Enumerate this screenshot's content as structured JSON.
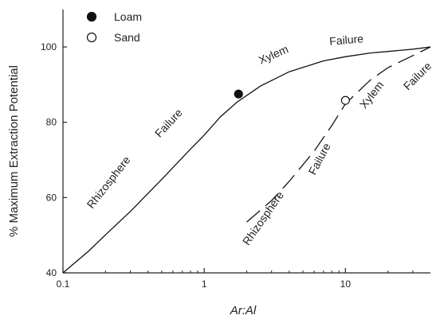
{
  "chart_data": {
    "type": "line",
    "title": "",
    "xlabel": "Ar:Al",
    "ylabel": "% Maximum Extraction Potential",
    "xscale": "log",
    "xlim": [
      0.1,
      40
    ],
    "ylim": [
      40,
      110
    ],
    "x_ticks": [
      0.1,
      1,
      10
    ],
    "x_tick_labels": [
      "0.1",
      "1",
      "10"
    ],
    "y_ticks": [
      40,
      60,
      80,
      100
    ],
    "y_tick_labels": [
      "40",
      "60",
      "80",
      "100"
    ],
    "grid": false,
    "legend_position": "top-left",
    "series": [
      {
        "name": "Loam",
        "style": "solid",
        "marker": "filled-circle",
        "x": [
          0.1,
          0.15,
          0.2,
          0.3,
          0.5,
          0.8,
          1.0,
          1.3,
          1.7,
          2.5,
          4,
          7,
          10,
          15,
          20,
          30,
          40
        ],
        "y": [
          40,
          45.6,
          50.1,
          56.3,
          64.8,
          72.9,
          76.6,
          81.4,
          85.3,
          89.6,
          93.4,
          96.3,
          97.4,
          98.4,
          98.8,
          99.4,
          100
        ],
        "highlight_point": {
          "x": 1.75,
          "y": 87.5
        }
      },
      {
        "name": "Sand",
        "style": "dashed",
        "marker": "open-circle",
        "x": [
          2.0,
          3.0,
          4.0,
          6.0,
          8.0,
          10.0,
          15.0,
          20.0,
          30.0,
          40.0
        ],
        "y": [
          53.5,
          59.2,
          64.3,
          72.3,
          79.1,
          84.9,
          91.2,
          94.5,
          97.7,
          100
        ],
        "highlight_point": {
          "x": 10.0,
          "y": 85.8
        }
      }
    ],
    "annotations": [
      "Rhizosphere",
      "Failure",
      "Xylem",
      "Failure",
      "Rhizosphere",
      "Failure",
      "Xylem",
      "Failure"
    ]
  }
}
